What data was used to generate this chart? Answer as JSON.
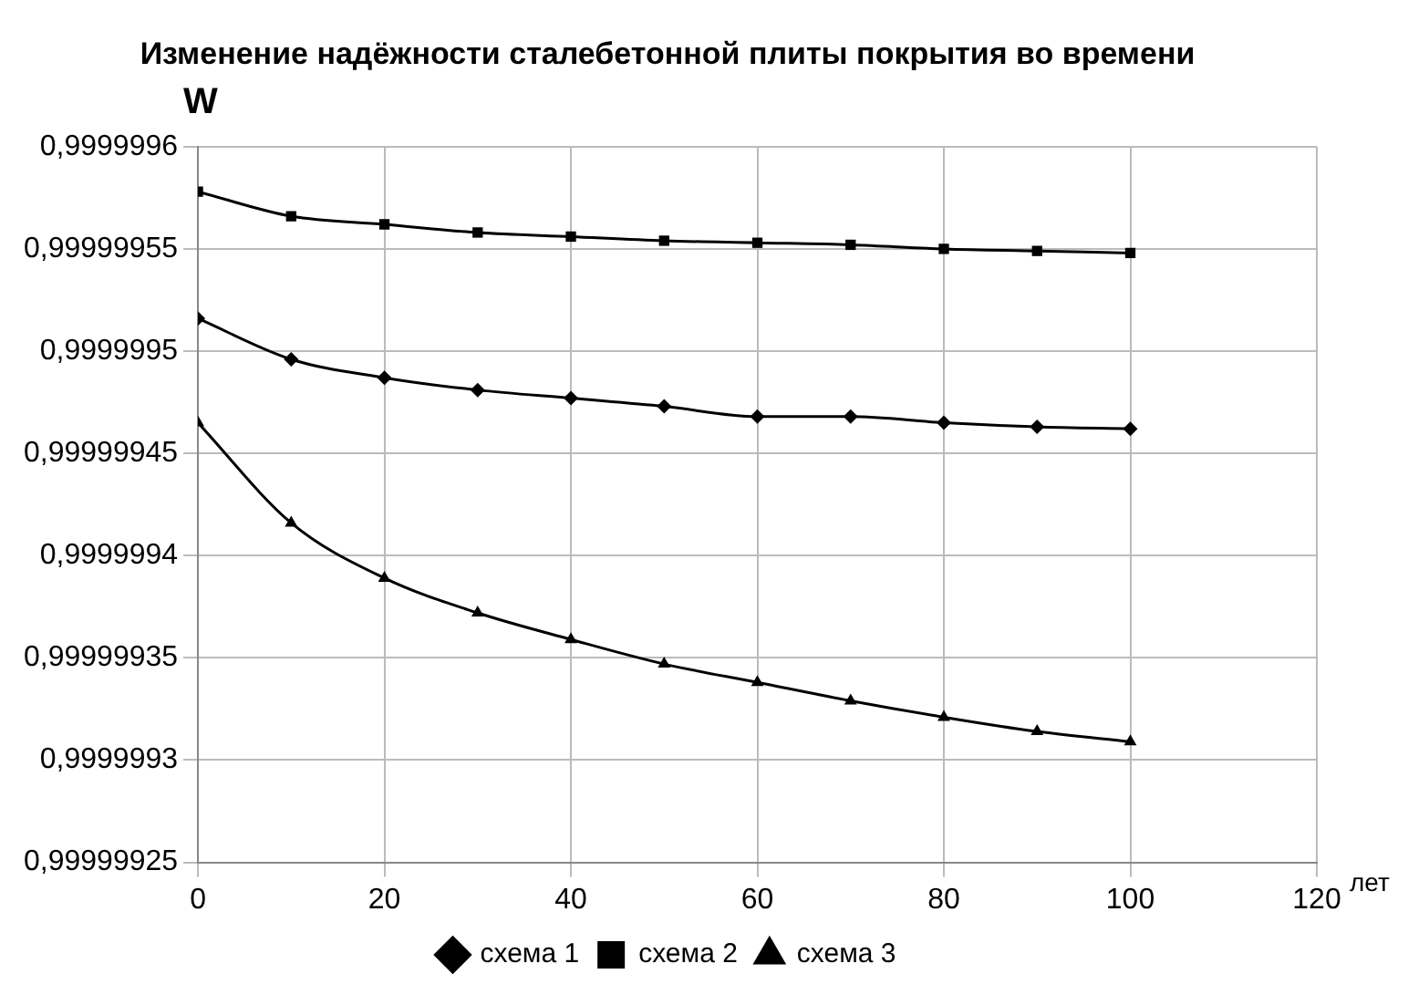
{
  "chart_data": {
    "type": "line",
    "title": "Изменение надёжности сталебетонной плиты покрытия во времени",
    "ylabel": "W",
    "xlabel": "лет",
    "x": [
      0,
      10,
      20,
      30,
      40,
      50,
      60,
      70,
      80,
      90,
      100
    ],
    "series": [
      {
        "name": "схема 1",
        "color": "#000000",
        "marker": "diamond",
        "values": [
          0.999999516,
          0.999999496,
          0.999999487,
          0.999999481,
          0.999999477,
          0.999999473,
          0.999999468,
          0.999999468,
          0.999999465,
          0.999999463,
          0.999999462
        ]
      },
      {
        "name": "схема 2",
        "color": "#000000",
        "marker": "square",
        "values": [
          0.999999578,
          0.999999566,
          0.999999562,
          0.999999558,
          0.999999556,
          0.999999554,
          0.999999553,
          0.999999552,
          0.99999955,
          0.999999549,
          0.999999548
        ]
      },
      {
        "name": "схема 3",
        "color": "#000000",
        "marker": "triangle",
        "values": [
          0.999999465,
          0.999999416,
          0.999999389,
          0.999999372,
          0.999999359,
          0.999999347,
          0.999999338,
          0.999999329,
          0.999999321,
          0.999999314,
          0.999999309
        ]
      }
    ],
    "xlim": [
      0,
      120
    ],
    "xticks": [
      0,
      20,
      40,
      60,
      80,
      100,
      120
    ],
    "ylim": [
      0.99999925,
      0.9999996
    ],
    "yticks": [
      {
        "value": 0.99999925,
        "label": "0,99999925"
      },
      {
        "value": 0.9999993,
        "label": "0,9999993"
      },
      {
        "value": 0.99999935,
        "label": "0,99999935"
      },
      {
        "value": 0.9999994,
        "label": "0,9999994"
      },
      {
        "value": 0.99999945,
        "label": "0,99999945"
      },
      {
        "value": 0.9999995,
        "label": "0,9999995"
      },
      {
        "value": 0.99999955,
        "label": "0,99999955"
      },
      {
        "value": 0.9999996,
        "label": "0,9999996"
      }
    ],
    "grid": true,
    "legend": "bottom",
    "line_style": "solid"
  }
}
